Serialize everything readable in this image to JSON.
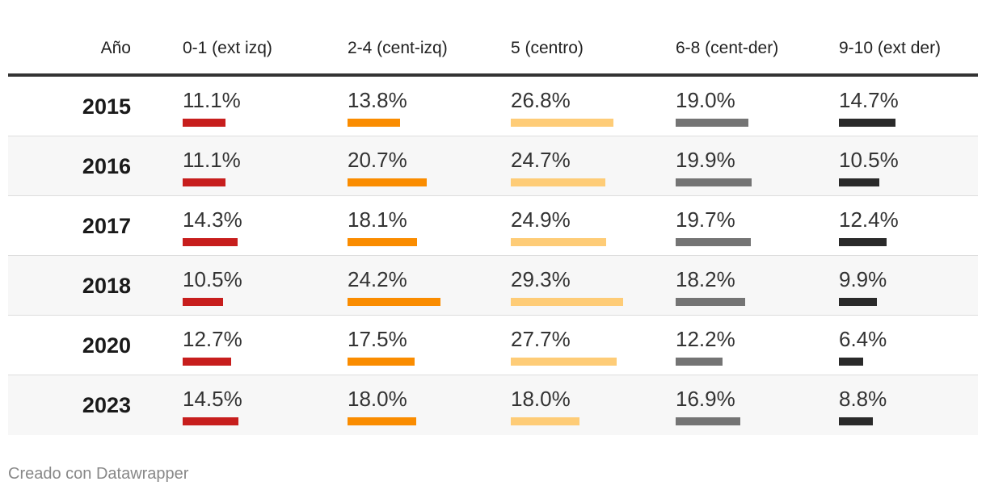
{
  "chart_data": {
    "type": "table",
    "columns": [
      "Año",
      "0-1 (ext izq)",
      "2-4 (cent-izq)",
      "5 (centro)",
      "6-8 (cent-der)",
      "9-10 (ext der)"
    ],
    "series_colors": [
      "#c71e1d",
      "#fa8c00",
      "#fecc77",
      "#747474",
      "#2a2a2a"
    ],
    "bar_max_percent": 30,
    "rows": [
      {
        "year": "2015",
        "values": [
          11.1,
          13.8,
          26.8,
          19.0,
          14.7
        ],
        "labels": [
          "11.1%",
          "13.8%",
          "26.8%",
          "19.0%",
          "14.7%"
        ]
      },
      {
        "year": "2016",
        "values": [
          11.1,
          20.7,
          24.7,
          19.9,
          10.5
        ],
        "labels": [
          "11.1%",
          "20.7%",
          "24.7%",
          "19.9%",
          "10.5%"
        ]
      },
      {
        "year": "2017",
        "values": [
          14.3,
          18.1,
          24.9,
          19.7,
          12.4
        ],
        "labels": [
          "14.3%",
          "18.1%",
          "24.9%",
          "19.7%",
          "12.4%"
        ]
      },
      {
        "year": "2018",
        "values": [
          10.5,
          24.2,
          29.3,
          18.2,
          9.9
        ],
        "labels": [
          "10.5%",
          "24.2%",
          "29.3%",
          "18.2%",
          "9.9%"
        ]
      },
      {
        "year": "2020",
        "values": [
          12.7,
          17.5,
          27.7,
          12.2,
          6.4
        ],
        "labels": [
          "12.7%",
          "17.5%",
          "27.7%",
          "12.2%",
          "6.4%"
        ]
      },
      {
        "year": "2023",
        "values": [
          14.5,
          18.0,
          18.0,
          16.9,
          8.8
        ],
        "labels": [
          "14.5%",
          "18.0%",
          "18.0%",
          "16.9%",
          "8.8%"
        ]
      }
    ]
  },
  "footer": {
    "credit": "Creado con Datawrapper"
  }
}
